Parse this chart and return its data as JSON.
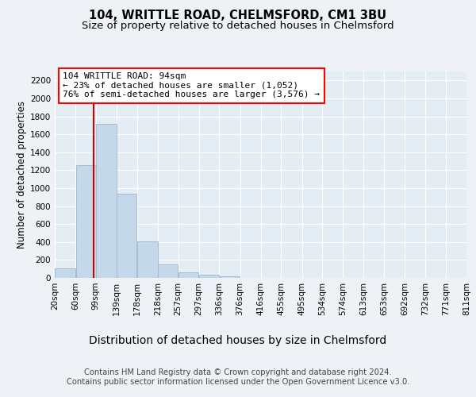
{
  "title_line1": "104, WRITTLE ROAD, CHELMSFORD, CM1 3BU",
  "title_line2": "Size of property relative to detached houses in Chelmsford",
  "xlabel": "Distribution of detached houses by size in Chelmsford",
  "ylabel": "Number of detached properties",
  "footer_line1": "Contains HM Land Registry data © Crown copyright and database right 2024.",
  "footer_line2": "Contains public sector information licensed under the Open Government Licence v3.0.",
  "annotation_title": "104 WRITTLE ROAD: 94sqm",
  "annotation_line2": "← 23% of detached houses are smaller (1,052)",
  "annotation_line3": "76% of semi-detached houses are larger (3,576) →",
  "bar_color": "#c5d8ea",
  "bar_edge_color": "#9ab8d0",
  "redline_color": "#cc0000",
  "redline_x": 94,
  "bins": [
    20,
    60,
    99,
    139,
    178,
    218,
    257,
    297,
    336,
    376,
    416,
    455,
    495,
    534,
    574,
    613,
    653,
    692,
    732,
    771,
    811
  ],
  "values": [
    110,
    1260,
    1720,
    940,
    405,
    150,
    65,
    35,
    22,
    0,
    0,
    0,
    0,
    0,
    0,
    0,
    0,
    0,
    0,
    0
  ],
  "ylim": [
    0,
    2300
  ],
  "yticks": [
    0,
    200,
    400,
    600,
    800,
    1000,
    1200,
    1400,
    1600,
    1800,
    2000,
    2200
  ],
  "background_color": "#eef2f7",
  "plot_bg_color": "#e4ecf4",
  "grid_color": "#ffffff",
  "title1_fontsize": 10.5,
  "title2_fontsize": 9.5,
  "xlabel_fontsize": 10,
  "ylabel_fontsize": 8.5,
  "tick_fontsize": 7.5,
  "footer_fontsize": 7.2,
  "annot_fontsize": 8.0
}
